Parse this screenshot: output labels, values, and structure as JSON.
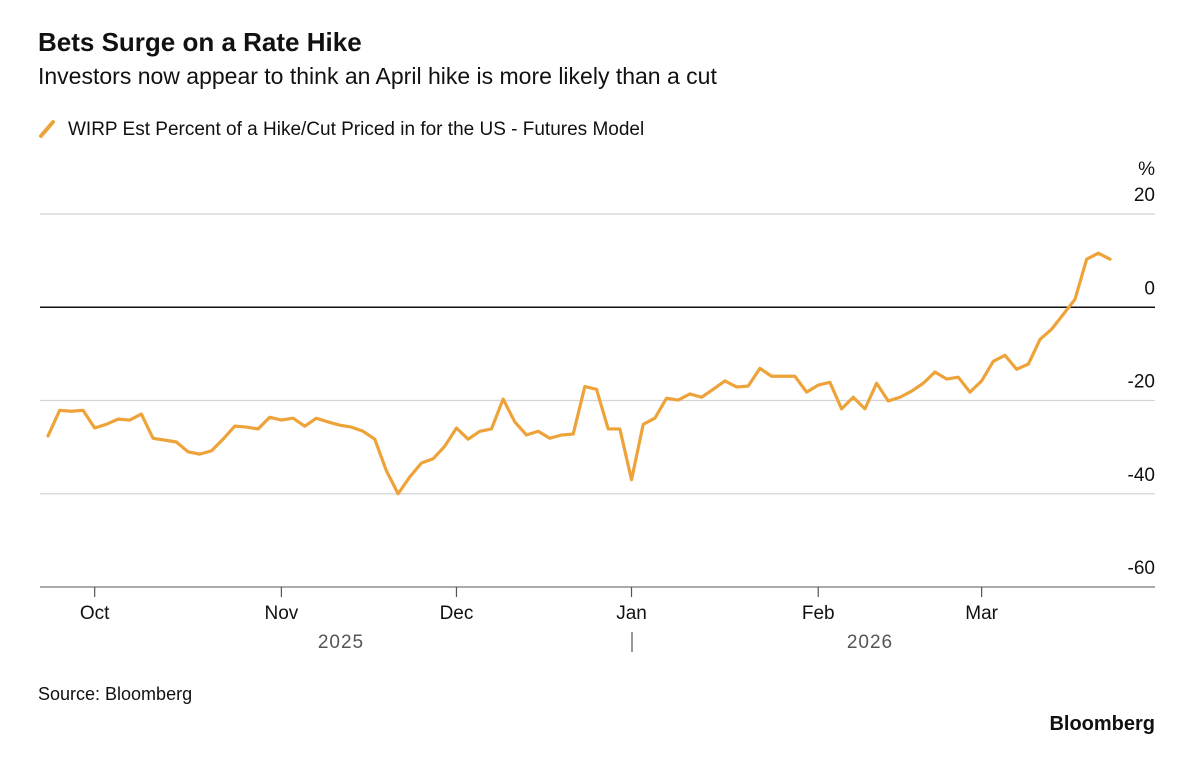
{
  "chart_data": {
    "type": "line",
    "title": "Bets Surge on a Rate Hike",
    "subtitle": "Investors now appear to think an April hike is more likely than a cut",
    "y_axis_label": "%",
    "source": "Source: Bloomberg",
    "brand": "Bloomberg",
    "year_labels": [
      "2025",
      "2026"
    ],
    "categories": [
      null,
      null,
      null,
      null,
      "Oct",
      null,
      null,
      null,
      null,
      null,
      null,
      null,
      null,
      null,
      null,
      null,
      null,
      null,
      null,
      null,
      "Nov",
      null,
      null,
      null,
      null,
      null,
      null,
      null,
      null,
      null,
      null,
      null,
      null,
      null,
      null,
      "Dec",
      null,
      null,
      null,
      null,
      null,
      null,
      null,
      null,
      null,
      null,
      null,
      null,
      null,
      null,
      "Jan",
      null,
      null,
      null,
      null,
      null,
      null,
      null,
      null,
      null,
      null,
      null,
      null,
      null,
      null,
      null,
      "Feb",
      null,
      null,
      null,
      null,
      null,
      null,
      null,
      null,
      null,
      null,
      null,
      null,
      null,
      "Mar",
      null,
      null,
      null,
      null,
      null,
      null,
      null,
      null,
      null,
      null,
      null
    ],
    "series": [
      {
        "name": "WIRP Est Percent of a Hike/Cut Priced in for the US - Futures Model",
        "color": "#eea33a",
        "values": [
          -27.6,
          -22.1,
          -22.3,
          -22.1,
          -25.9,
          -25.1,
          -24.0,
          -24.2,
          -22.9,
          -28.1,
          -28.5,
          -28.9,
          -31.0,
          -31.5,
          -30.8,
          -28.3,
          -25.5,
          -25.7,
          -26.1,
          -23.6,
          -24.2,
          -23.8,
          -25.5,
          -23.8,
          -24.6,
          -25.3,
          -25.7,
          -26.6,
          -28.3,
          -35.1,
          -40.0,
          -36.4,
          -33.4,
          -32.5,
          -29.8,
          -25.9,
          -28.3,
          -26.6,
          -26.1,
          -19.7,
          -24.6,
          -27.4,
          -26.6,
          -28.1,
          -27.4,
          -27.2,
          -17.0,
          -17.6,
          -26.1,
          -26.1,
          -37.0,
          -25.1,
          -23.8,
          -19.5,
          -19.9,
          -18.6,
          -19.3,
          -17.6,
          -15.8,
          -17.1,
          -16.9,
          -13.1,
          -14.8,
          -14.8,
          -14.8,
          -18.2,
          -16.7,
          -16.1,
          -21.8,
          -19.3,
          -21.8,
          -16.3,
          -20.1,
          -19.3,
          -18.0,
          -16.3,
          -13.9,
          -15.4,
          -15.0,
          -18.2,
          -15.8,
          -11.6,
          -10.3,
          -13.3,
          -12.2,
          -6.9,
          -4.7,
          -1.5,
          1.7,
          10.3,
          11.6,
          10.3
        ]
      }
    ],
    "ylim": [
      -60,
      20
    ],
    "yticks": [
      -60,
      -40,
      -20,
      0,
      20
    ],
    "grid": true
  }
}
